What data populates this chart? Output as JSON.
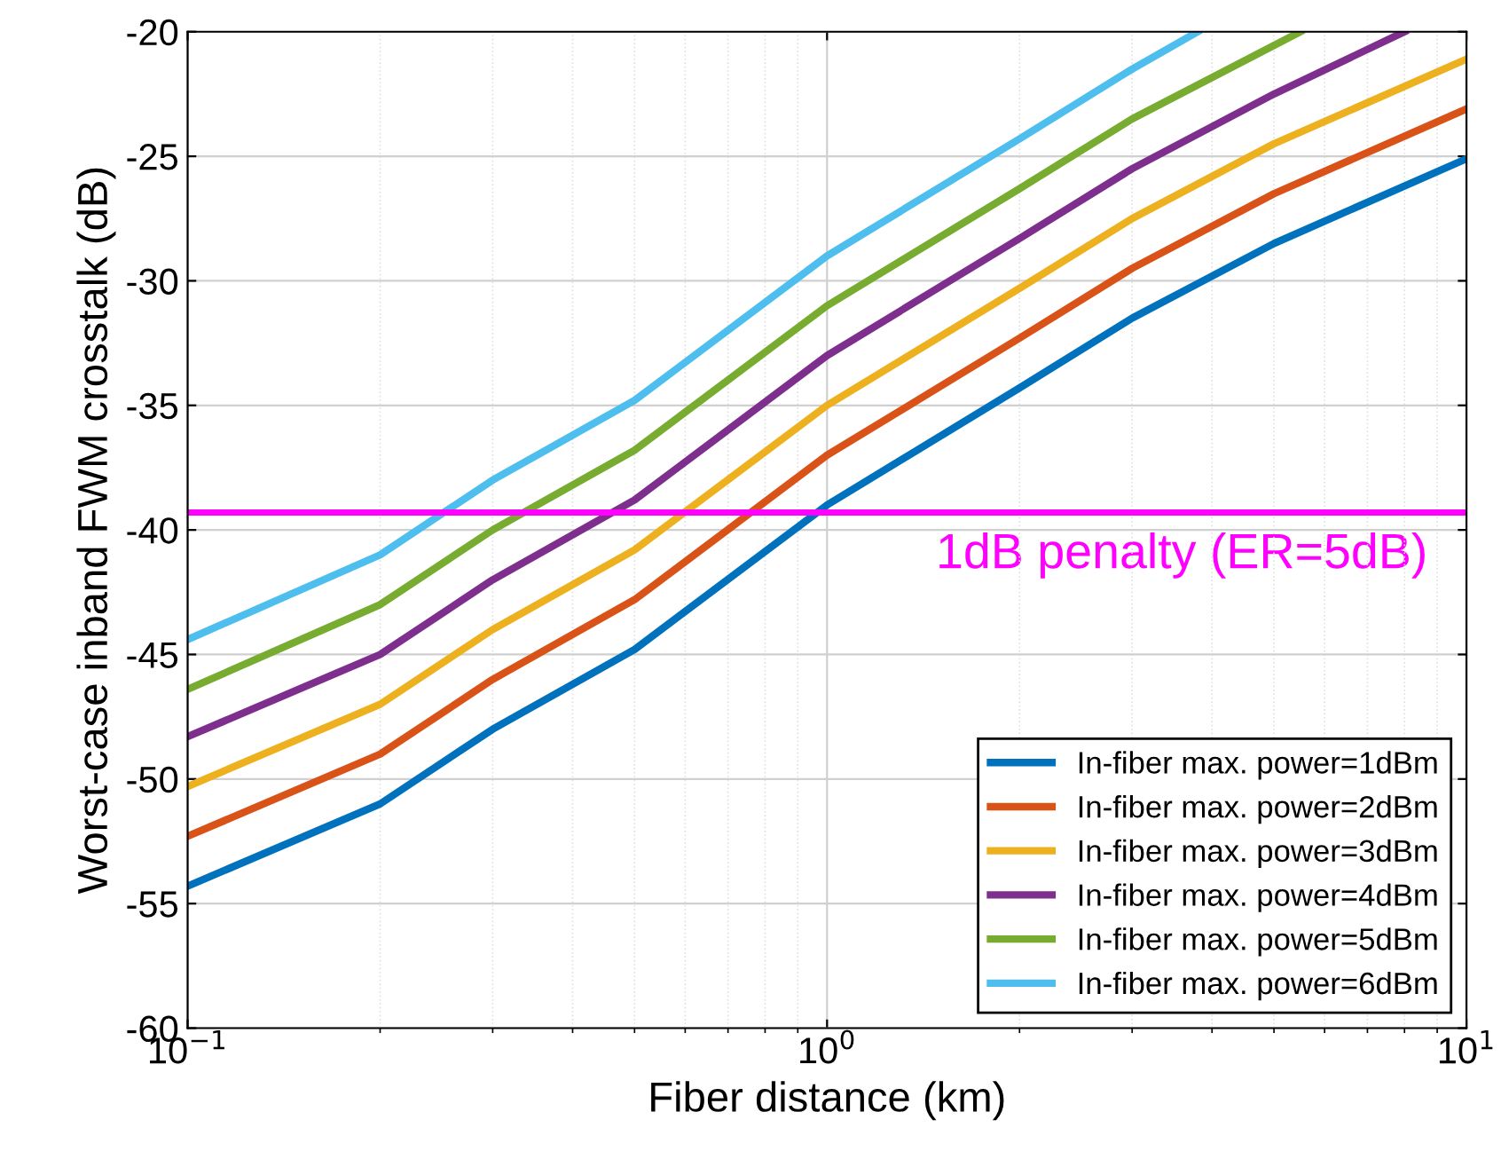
{
  "chart_data": {
    "type": "line",
    "xlabel": "Fiber distance (km)",
    "ylabel": "Worst-case inband FWM crosstalk (dB)",
    "log": "x",
    "xlim": [
      0.1,
      10
    ],
    "ylim": [
      -60,
      -20
    ],
    "xticks": [
      {
        "value": 0.1,
        "label": "10$^{−1}$"
      },
      {
        "value": 1,
        "label": "10$^{0}$"
      },
      {
        "value": 10,
        "label": "10$^{1}$"
      }
    ],
    "yticks": [
      -60,
      -55,
      -50,
      -45,
      -40,
      -35,
      -30,
      -25,
      -20
    ],
    "grid": true,
    "legend": "bottom right",
    "line_style": "solid",
    "marker": "none",
    "x": [
      0.1,
      0.2,
      0.3,
      0.5,
      1,
      2,
      3,
      5,
      10
    ],
    "series": [
      {
        "name": "In-fiber max. power=1dBm",
        "color": "#0072bd",
        "values": [
          -54.3,
          -51,
          -48,
          -44.8,
          -39,
          -34.3,
          -31.5,
          -28.5,
          -25.1
        ]
      },
      {
        "name": "In-fiber max. power=2dBm",
        "color": "#d95319",
        "values": [
          -52.3,
          -49,
          -46,
          -42.8,
          -37,
          -32.3,
          -29.5,
          -26.5,
          -23.1
        ]
      },
      {
        "name": "In-fiber max. power=3dBm",
        "color": "#edb120",
        "values": [
          -50.3,
          -47,
          -44,
          -40.8,
          -35,
          -30.3,
          -27.5,
          -24.5,
          -21.1
        ]
      },
      {
        "name": "In-fiber max. power=4dBm",
        "color": "#7e2f8e",
        "x": [
          0.1,
          0.2,
          0.3,
          0.5,
          1,
          2,
          3,
          5,
          8
        ],
        "values": [
          -48.3,
          -45,
          -42,
          -38.8,
          -33,
          -28.3,
          -25.5,
          -22.5,
          -20
        ]
      },
      {
        "name": "In-fiber max. power=5dBm",
        "color": "#77ac30",
        "x": [
          0.1,
          0.2,
          0.3,
          0.5,
          1,
          2,
          3,
          5.5
        ],
        "values": [
          -46.4,
          -43,
          -40,
          -36.8,
          -31,
          -26.3,
          -23.5,
          -20
        ]
      },
      {
        "name": "In-fiber max. power=6dBm",
        "color": "#4dbeee",
        "x": [
          0.1,
          0.2,
          0.3,
          0.5,
          1,
          2,
          3,
          3.8
        ],
        "values": [
          -44.4,
          -41,
          -38,
          -34.8,
          -29,
          -24.3,
          -21.5,
          -20
        ]
      }
    ],
    "ref_lines": [
      {
        "axis": "y",
        "value": -39.3,
        "color": "#ff00ff"
      }
    ],
    "annotations": [
      "1dB penalty (ER=5dB)"
    ]
  }
}
